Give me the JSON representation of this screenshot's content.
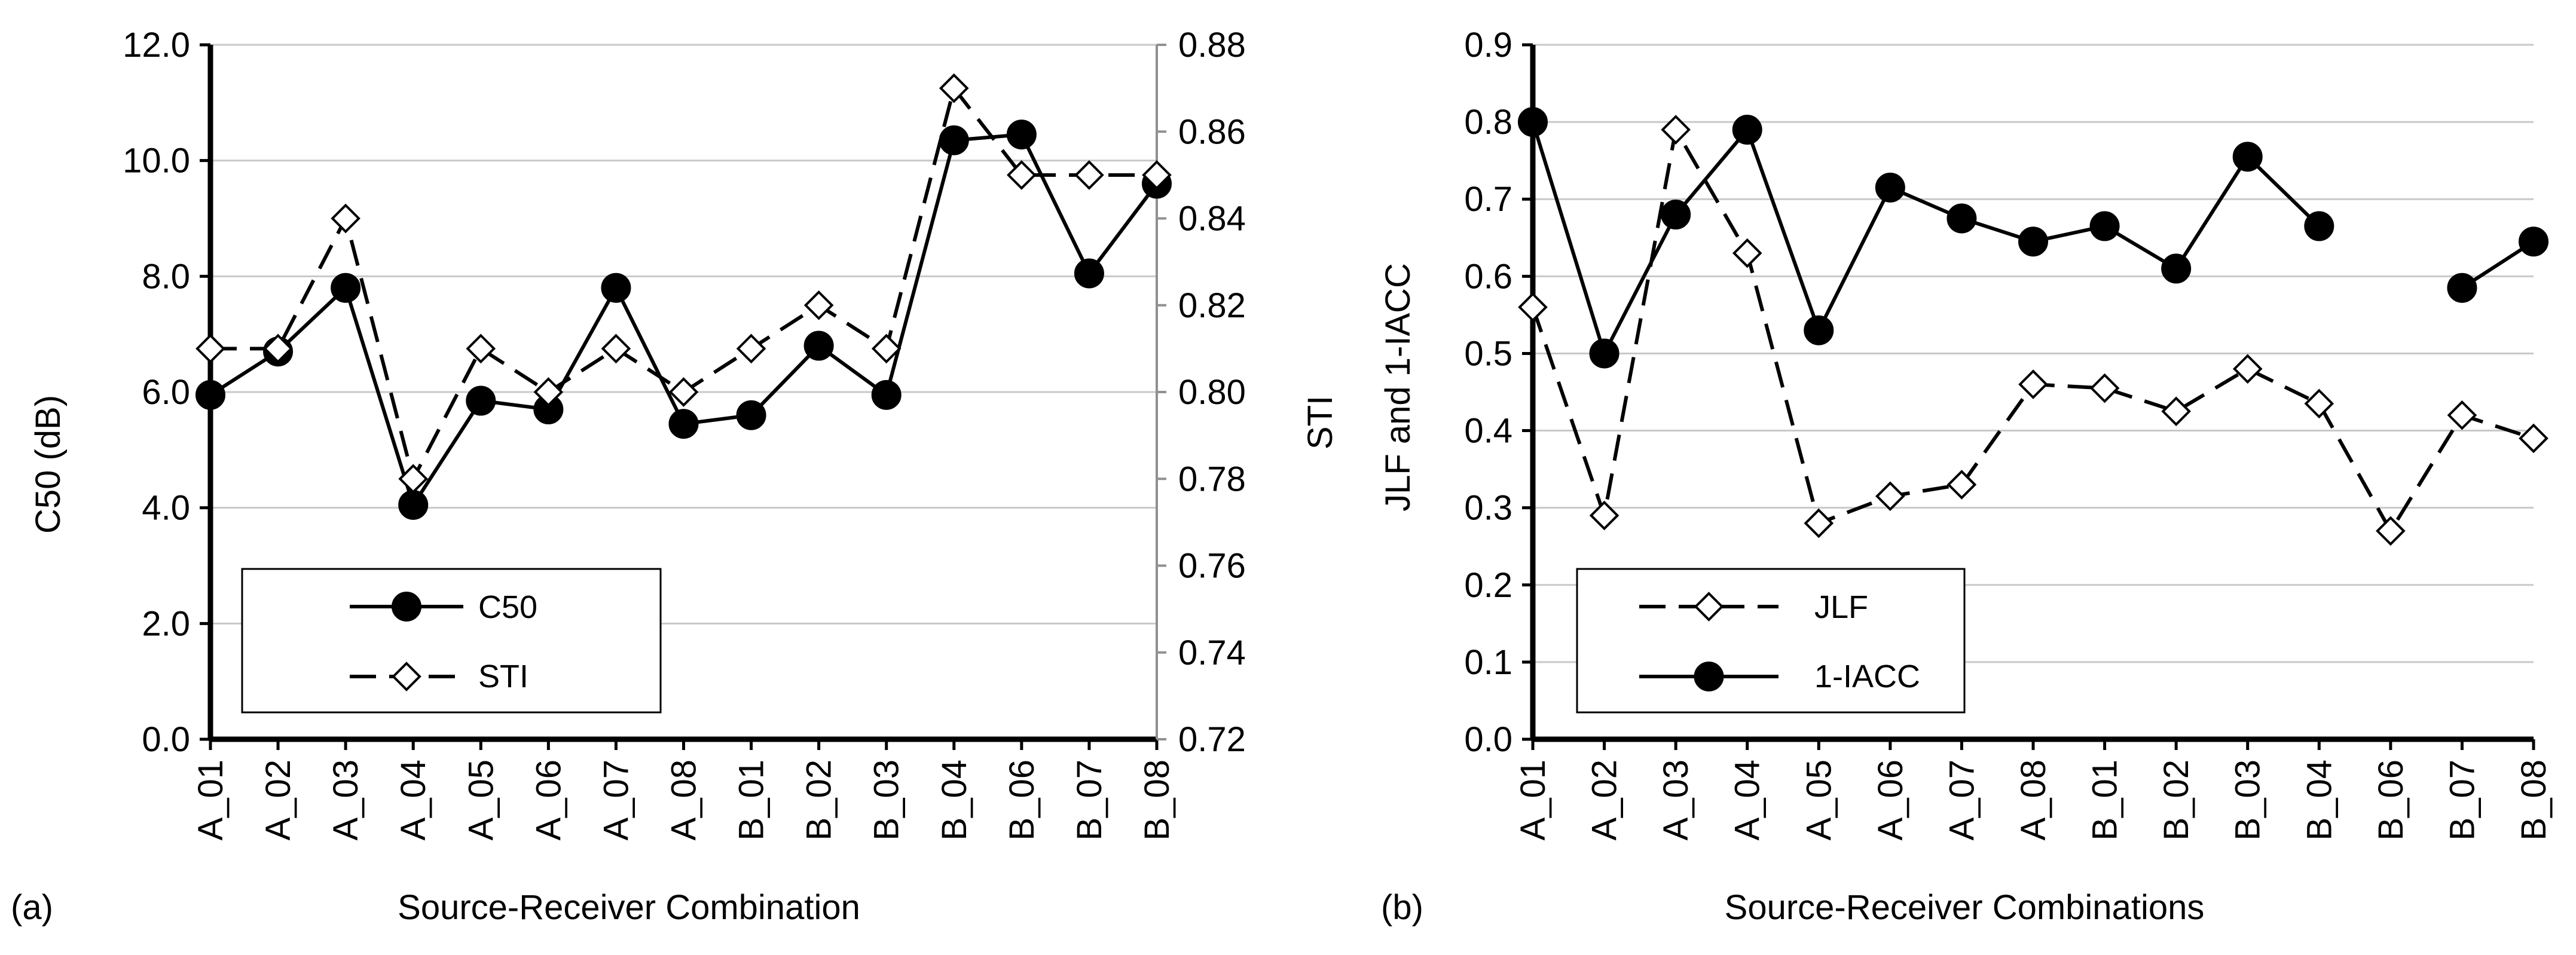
{
  "chart_data": [
    {
      "type": "line",
      "panel_label": "(a)",
      "categories": [
        "A_01",
        "A_02",
        "A_03",
        "A_04",
        "A_05",
        "A_06",
        "A_07",
        "A_08",
        "B_01",
        "B_02",
        "B_03",
        "B_04",
        "B_06",
        "B_07",
        "B_08"
      ],
      "xlabel": "Source-Receiver Combination",
      "ylabel": "C50 (dB)",
      "ylim": [
        0,
        12
      ],
      "yticks": [
        "0.0",
        "2.0",
        "4.0",
        "6.0",
        "8.0",
        "10.0",
        "12.0"
      ],
      "y2label": "STI",
      "y2lim": [
        0.72,
        0.88
      ],
      "y2ticks": [
        "0.72",
        "0.74",
        "0.76",
        "0.78",
        "0.80",
        "0.82",
        "0.84",
        "0.86",
        "0.88"
      ],
      "legend_position": "bottom-left",
      "series": [
        {
          "name": "C50",
          "axis": "left",
          "line": "solid",
          "marker": "filled-circle",
          "values": [
            5.95,
            6.7,
            7.8,
            4.05,
            5.85,
            5.7,
            7.8,
            5.45,
            5.6,
            6.8,
            5.95,
            10.35,
            10.45,
            8.05,
            9.6
          ]
        },
        {
          "name": "STI",
          "axis": "right",
          "line": "dashed",
          "marker": "open-diamond",
          "values": [
            0.81,
            0.81,
            0.84,
            0.78,
            0.81,
            0.8,
            0.81,
            0.8,
            0.81,
            0.82,
            0.81,
            0.87,
            0.85,
            0.85,
            0.85
          ]
        }
      ]
    },
    {
      "type": "line",
      "panel_label": "(b)",
      "categories": [
        "A_01",
        "A_02",
        "A_03",
        "A_04",
        "A_05",
        "A_06",
        "A_07",
        "A_08",
        "B_01",
        "B_02",
        "B_03",
        "B_04",
        "B_06",
        "B_07",
        "B_08"
      ],
      "xlabel": "Source-Receiver Combinations",
      "ylabel": "JLF and 1-IACC",
      "ylim": [
        0,
        0.9
      ],
      "yticks": [
        "0.0",
        "0.1",
        "0.2",
        "0.3",
        "0.4",
        "0.5",
        "0.6",
        "0.7",
        "0.8",
        "0.9"
      ],
      "legend_position": "bottom-left",
      "series": [
        {
          "name": "JLF",
          "line": "dashed",
          "marker": "open-diamond",
          "values": [
            0.56,
            0.29,
            0.79,
            0.63,
            0.28,
            0.315,
            0.33,
            0.46,
            0.455,
            0.425,
            0.48,
            0.435,
            0.27,
            0.42,
            0.39
          ]
        },
        {
          "name": "1-IACC",
          "line": "solid",
          "marker": "filled-circle",
          "values": [
            0.8,
            0.5,
            0.68,
            0.79,
            0.53,
            0.715,
            0.675,
            0.645,
            0.665,
            0.61,
            0.755,
            0.665,
            null,
            0.585,
            0.645
          ]
        }
      ]
    }
  ]
}
